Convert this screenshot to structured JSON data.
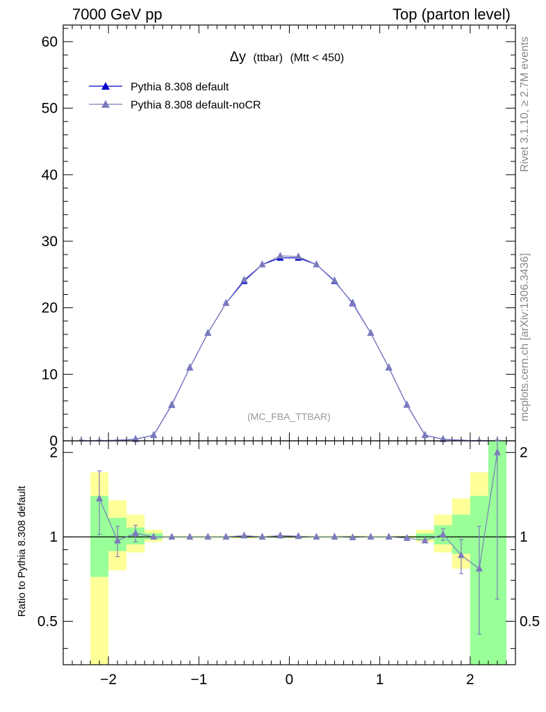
{
  "header": {
    "left": "7000 GeV pp",
    "right": "Top (parton level)"
  },
  "side_labels": {
    "rivet": "Rivet 3.1.10, ≥ 2.7M events",
    "mcplots": "mcplots.cern.ch [arXiv:1306.3436]"
  },
  "chart_data": {
    "type": "line",
    "title_main": "Δy",
    "title_small": "(ttbar)",
    "title_cut": "(Mtt < 450)",
    "watermark": "(MC_FBA_TTBAR)",
    "xlim": [
      -2.5,
      2.5
    ],
    "ylim": [
      0,
      62.5
    ],
    "ratio_ylim": [
      0.35,
      2.2
    ],
    "ratio_ylabel": "Ratio to Pythia 8.308 default",
    "x_ticks": [
      -2,
      -1,
      0,
      1,
      2
    ],
    "x_tick_labels": [
      "−2",
      "−1",
      "0",
      "1",
      "2"
    ],
    "y_ticks": [
      0,
      10,
      20,
      30,
      40,
      50,
      60
    ],
    "y_tick_labels": [
      "0",
      "10",
      "20",
      "30",
      "40",
      "50",
      "60"
    ],
    "ratio_ticks": [
      0.5,
      1,
      2
    ],
    "ratio_tick_labels": [
      "0.5",
      "1",
      "2"
    ],
    "x": [
      -2.3,
      -2.1,
      -1.9,
      -1.7,
      -1.5,
      -1.3,
      -1.1,
      -0.9,
      -0.7,
      -0.5,
      -0.3,
      -0.1,
      0.1,
      0.3,
      0.5,
      0.7,
      0.9,
      1.1,
      1.3,
      1.5,
      1.7,
      1.9,
      2.1,
      2.3
    ],
    "series": [
      {
        "name": "Pythia 8.308 default",
        "color": "#0000cc",
        "values": [
          0.0,
          0.02,
          0.08,
          0.25,
          0.85,
          5.4,
          11.0,
          16.2,
          20.7,
          24.0,
          26.5,
          27.5,
          27.5,
          26.5,
          24.0,
          20.7,
          16.2,
          11.0,
          5.4,
          0.85,
          0.25,
          0.08,
          0.02,
          0.0
        ]
      },
      {
        "name": "Pythia 8.308 default-noCR",
        "color": "#7b7bbd",
        "values": [
          0.0,
          0.027,
          0.078,
          0.26,
          0.85,
          5.45,
          11.0,
          16.2,
          20.7,
          24.2,
          26.5,
          27.8,
          27.7,
          26.5,
          24.1,
          20.6,
          16.2,
          11.0,
          5.4,
          0.84,
          0.25,
          0.07,
          0.015,
          0.0
        ],
        "ratio": [
          null,
          1.37,
          0.97,
          1.03,
          1.0,
          1.0,
          1.0,
          1.0,
          1.0,
          1.01,
          1.0,
          1.01,
          1.005,
          1.0,
          1.0,
          0.995,
          1.0,
          1.0,
          0.99,
          0.97,
          1.02,
          0.86,
          0.77,
          2.0
        ],
        "ratio_err": [
          null,
          0.35,
          0.12,
          0.07,
          0.0,
          0.0,
          0.0,
          0.0,
          0.0,
          0.0,
          0.0,
          0.0,
          0.0,
          0.0,
          0.0,
          0.0,
          0.0,
          0.0,
          0.0,
          0.0,
          0.05,
          0.12,
          0.32,
          1.4
        ]
      }
    ],
    "bands": [
      {
        "x0": -2.2,
        "x1": -2.0,
        "green": [
          0.72,
          1.4
        ],
        "yellow": [
          0.3,
          1.7
        ]
      },
      {
        "x0": -2.0,
        "x1": -1.8,
        "green": [
          0.89,
          1.17
        ],
        "yellow": [
          0.76,
          1.35
        ]
      },
      {
        "x0": -1.8,
        "x1": -1.6,
        "green": [
          0.94,
          1.08
        ],
        "yellow": [
          0.88,
          1.2
        ]
      },
      {
        "x0": -1.6,
        "x1": -1.4,
        "green": [
          0.98,
          1.03
        ],
        "yellow": [
          0.96,
          1.06
        ]
      },
      {
        "x0": -1.4,
        "x1": 1.4,
        "green": [
          0.995,
          1.005
        ],
        "yellow": [
          0.99,
          1.01
        ]
      },
      {
        "x0": 1.4,
        "x1": 1.6,
        "green": [
          0.98,
          1.03
        ],
        "yellow": [
          0.96,
          1.06
        ]
      },
      {
        "x0": 1.6,
        "x1": 1.8,
        "green": [
          0.94,
          1.1
        ],
        "yellow": [
          0.88,
          1.2
        ]
      },
      {
        "x0": 1.8,
        "x1": 2.0,
        "green": [
          0.87,
          1.2
        ],
        "yellow": [
          0.77,
          1.37
        ]
      },
      {
        "x0": 2.0,
        "x1": 2.2,
        "green": [
          0.3,
          1.4
        ],
        "yellow": [
          0.3,
          1.7
        ]
      },
      {
        "x0": 2.2,
        "x1": 2.4,
        "green": [
          0.3,
          2.2
        ],
        "yellow": [
          0.3,
          2.2
        ]
      }
    ],
    "legend_position": "top-left",
    "grid": false
  }
}
